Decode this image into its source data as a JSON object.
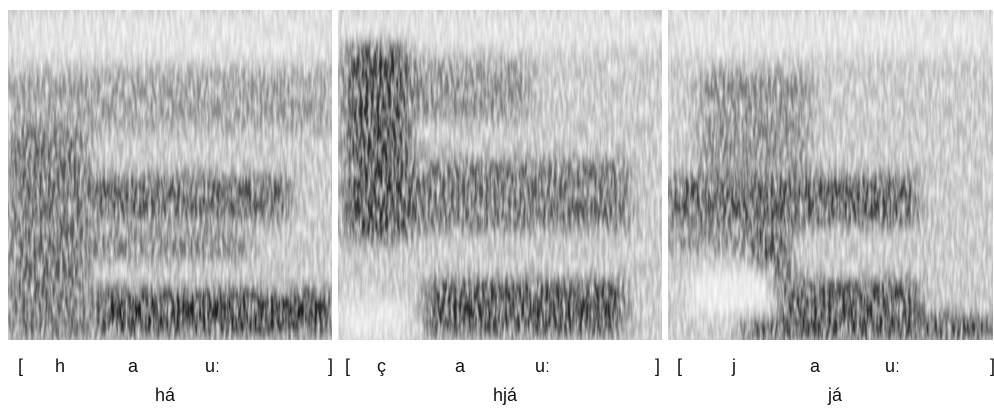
{
  "panels": [
    {
      "segments": [
        "[",
        "h",
        "a",
        "uː",
        "]"
      ],
      "word": "há"
    },
    {
      "segments": [
        "[",
        "ç",
        "a",
        "uː",
        "]"
      ],
      "word": "hjá"
    },
    {
      "segments": [
        "[",
        "j",
        "a",
        "uː",
        "]"
      ],
      "word": "já"
    }
  ]
}
